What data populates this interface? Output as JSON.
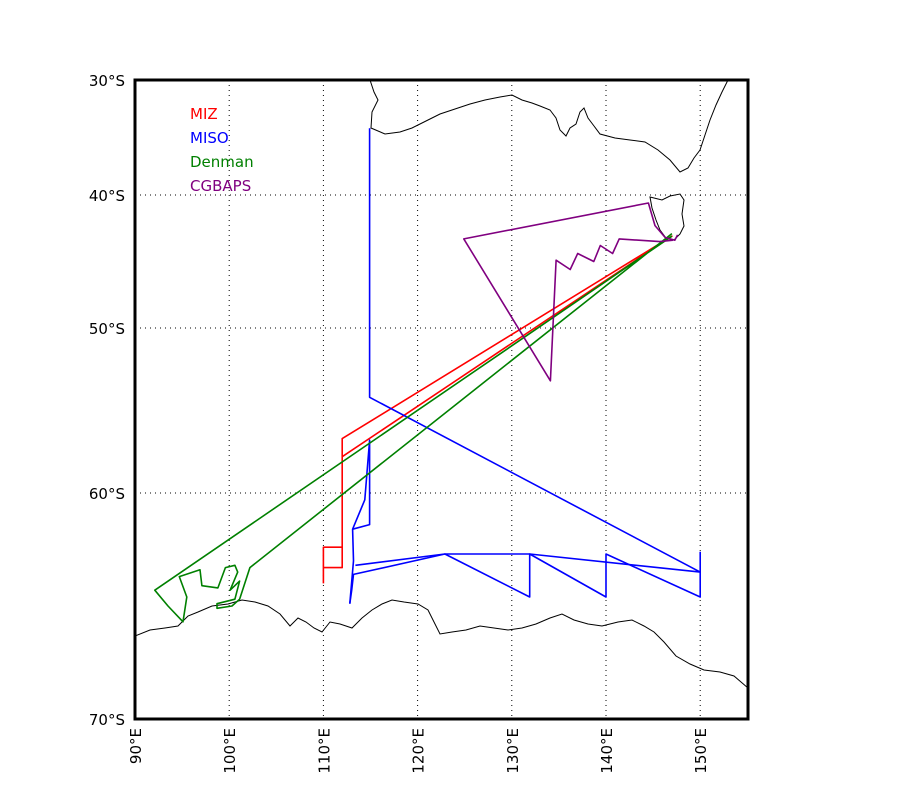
{
  "chart_data": {
    "type": "map-tracks",
    "projection": "mercator",
    "lon_range": [
      90,
      155
    ],
    "lat_range": [
      -30,
      -70
    ],
    "grid": true,
    "legend_placement": "top-left",
    "x_ticks": [
      {
        "value": 90,
        "label": "90°E"
      },
      {
        "value": 100,
        "label": "100°E"
      },
      {
        "value": 110,
        "label": "110°E"
      },
      {
        "value": 120,
        "label": "120°E"
      },
      {
        "value": 130,
        "label": "130°E"
      },
      {
        "value": 140,
        "label": "140°E"
      },
      {
        "value": 150,
        "label": "150°E"
      }
    ],
    "y_ticks": [
      {
        "value": -30,
        "label": "30°S"
      },
      {
        "value": -40,
        "label": "40°S"
      },
      {
        "value": -50,
        "label": "50°S"
      },
      {
        "value": -60,
        "label": "60°S"
      },
      {
        "value": -70,
        "label": "70°S"
      }
    ],
    "series": [
      {
        "name": "MIZ",
        "color": "#ff0000",
        "segments": [
          [
            [
              110,
              -64.0
            ],
            [
              110,
              -62.4
            ],
            [
              112,
              -62.4
            ]
          ],
          [
            [
              110,
              -63.3
            ],
            [
              112,
              -63.3
            ],
            [
              112,
              -56.7
            ],
            [
              147.0,
              -43.1
            ],
            [
              112,
              -57.8
            ]
          ]
        ]
      },
      {
        "name": "MISO",
        "color": "#0000ff",
        "segments": [
          [
            [
              114.9,
              -34.2
            ],
            [
              114.9,
              -54.2
            ],
            [
              150,
              -63.5
            ],
            [
              131.9,
              -62.7
            ],
            [
              131.9,
              -64.6
            ],
            [
              122.9,
              -62.7
            ],
            [
              113.2,
              -63.6
            ],
            [
              113.0,
              -64.3
            ],
            [
              112.8,
              -64.9
            ]
          ],
          [
            [
              112.8,
              -64.9
            ],
            [
              113.2,
              -63.0
            ],
            [
              113.1,
              -61.6
            ],
            [
              114.9,
              -61.4
            ],
            [
              114.9,
              -56.8
            ],
            [
              114.4,
              -60.3
            ],
            [
              113.1,
              -61.6
            ]
          ],
          [
            [
              113.4,
              -63.2
            ],
            [
              122.9,
              -62.7
            ],
            [
              131.9,
              -62.7
            ],
            [
              140.0,
              -64.6
            ],
            [
              140.0,
              -62.7
            ],
            [
              150,
              -64.6
            ],
            [
              150,
              -62.6
            ]
          ]
        ]
      },
      {
        "name": "Denman",
        "color": "#008000",
        "segments": [
          [
            [
              147.0,
              -43.1
            ],
            [
              92.1,
              -64.3
            ],
            [
              93.5,
              -65.0
            ],
            [
              95.1,
              -65.7
            ],
            [
              95.5,
              -64.6
            ],
            [
              94.7,
              -63.7
            ],
            [
              96.9,
              -63.4
            ],
            [
              97.1,
              -64.1
            ],
            [
              98.8,
              -64.2
            ],
            [
              99.6,
              -63.3
            ],
            [
              100.6,
              -63.2
            ],
            [
              100.9,
              -63.5
            ],
            [
              100.1,
              -64.3
            ],
            [
              101.1,
              -63.9
            ],
            [
              100.6,
              -64.7
            ],
            [
              98.7,
              -64.9
            ],
            [
              98.7,
              -65.1
            ],
            [
              100.3,
              -65.0
            ],
            [
              101.1,
              -64.7
            ],
            [
              102.2,
              -63.3
            ],
            [
              147.0,
              -42.9
            ]
          ]
        ]
      },
      {
        "name": "CGBAPS",
        "color": "#800080",
        "segments": [
          [
            [
              147.1,
              -43.4
            ],
            [
              145.7,
              -43.5
            ],
            [
              141.4,
              -43.3
            ],
            [
              140.7,
              -44.4
            ],
            [
              139.4,
              -43.8
            ],
            [
              138.7,
              -45.0
            ],
            [
              137.0,
              -44.4
            ],
            [
              136.2,
              -45.6
            ],
            [
              134.7,
              -44.9
            ],
            [
              134.1,
              -53.2
            ],
            [
              124.9,
              -43.3
            ],
            [
              144.5,
              -40.6
            ],
            [
              145.2,
              -42.3
            ],
            [
              146.3,
              -43.2
            ],
            [
              147.3,
              -43.4
            ],
            [
              147.6,
              -43.0
            ]
          ]
        ]
      }
    ]
  }
}
